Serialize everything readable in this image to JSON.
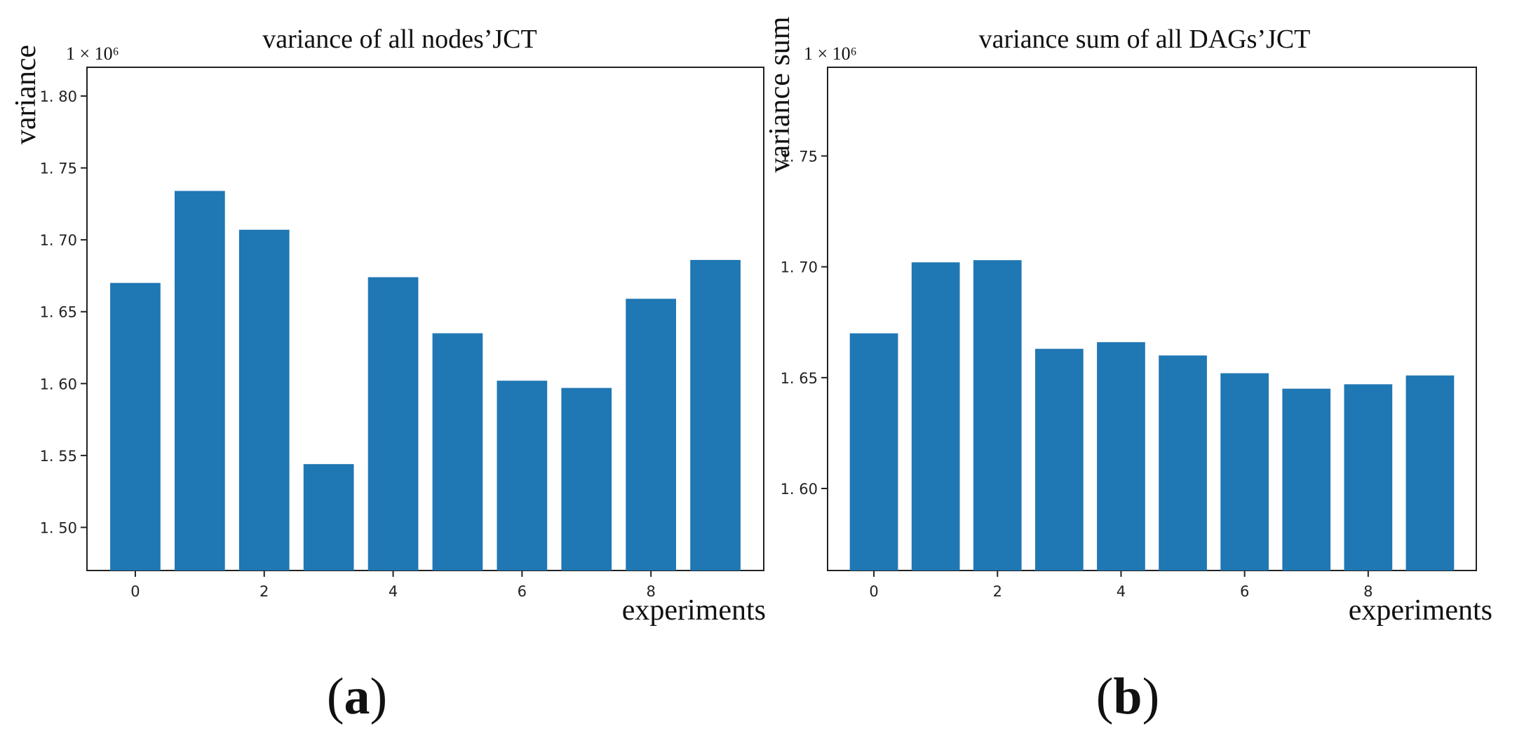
{
  "bar_color": "#1f77b4",
  "chart_data": [
    {
      "type": "bar",
      "title": "variance of all nodes’JCT",
      "xlabel": "experiments",
      "ylabel": "variance",
      "offset_text": "1 × 10⁶",
      "panel_label_left": "(",
      "panel_label_letter": "a",
      "panel_label_right": ")",
      "categories": [
        0,
        1,
        2,
        3,
        4,
        5,
        6,
        7,
        8,
        9
      ],
      "values": [
        1.67,
        1.734,
        1.707,
        1.544,
        1.674,
        1.635,
        1.602,
        1.597,
        1.659,
        1.686
      ],
      "ylim": [
        1.47,
        1.82
      ],
      "xlim": [
        -0.75,
        9.75
      ],
      "yticks": [
        1.5,
        1.55,
        1.6,
        1.65,
        1.7,
        1.75,
        1.8
      ],
      "ytick_labels": [
        "1. 50",
        "1. 55",
        "1. 60",
        "1. 65",
        "1. 70",
        "1. 75",
        "1. 80"
      ],
      "xticks": [
        0,
        2,
        4,
        6,
        8
      ],
      "xtick_labels": [
        "0",
        "2",
        "4",
        "6",
        "8"
      ],
      "grid": false,
      "legend": "none"
    },
    {
      "type": "bar",
      "title": "variance sum of all DAGs’JCT",
      "xlabel": "experiments",
      "ylabel": "variance sum",
      "offset_text": "1 × 10⁶",
      "panel_label_left": "(",
      "panel_label_letter": "b",
      "panel_label_right": ")",
      "categories": [
        0,
        1,
        2,
        3,
        4,
        5,
        6,
        7,
        8,
        9
      ],
      "values": [
        1.67,
        1.702,
        1.703,
        1.663,
        1.666,
        1.66,
        1.652,
        1.645,
        1.647,
        1.651
      ],
      "ylim": [
        1.563,
        1.79
      ],
      "xlim": [
        -0.75,
        9.75
      ],
      "yticks": [
        1.6,
        1.65,
        1.7,
        1.75
      ],
      "ytick_labels": [
        "1. 60",
        "1. 65",
        "1. 70",
        "1. 75"
      ],
      "xticks": [
        0,
        2,
        4,
        6,
        8
      ],
      "xtick_labels": [
        "0",
        "2",
        "4",
        "6",
        "8"
      ],
      "grid": false,
      "legend": "none"
    }
  ]
}
